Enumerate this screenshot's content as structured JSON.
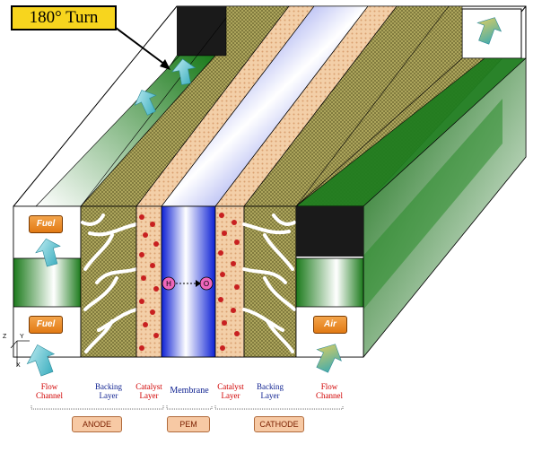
{
  "callout": {
    "text": "180° Turn"
  },
  "tags": {
    "fuel_top": "Fuel",
    "fuel_bottom": "Fuel",
    "air": "Air"
  },
  "ions": {
    "positive": "H",
    "negative": "O"
  },
  "axis": {
    "z": "Z",
    "y": "Y",
    "x": "X"
  },
  "labels": {
    "flow_channel_left": [
      "Flow",
      "Channel"
    ],
    "backing_layer_left": [
      "Backing",
      "Layer"
    ],
    "catalyst_layer_left": [
      "Catalyst",
      "Layer"
    ],
    "membrane": [
      "Membrane"
    ],
    "catalyst_layer_right": [
      "Catalyst",
      "Layer"
    ],
    "backing_layer_right": [
      "Backing",
      "Layer"
    ],
    "flow_channel_right": [
      "Flow",
      "Channel"
    ]
  },
  "groups": {
    "anode": "ANODE",
    "pem": "PEM",
    "cathode": "CATHODE"
  },
  "colors": {
    "callout": "#f7d51e",
    "channel_green": "#1d7a1d",
    "membrane_blue": "#1a2bd8",
    "backing_olive": "#a8a25a",
    "catalyst_peach": "#f2c9a0",
    "group_box": "#f7c9a4"
  }
}
